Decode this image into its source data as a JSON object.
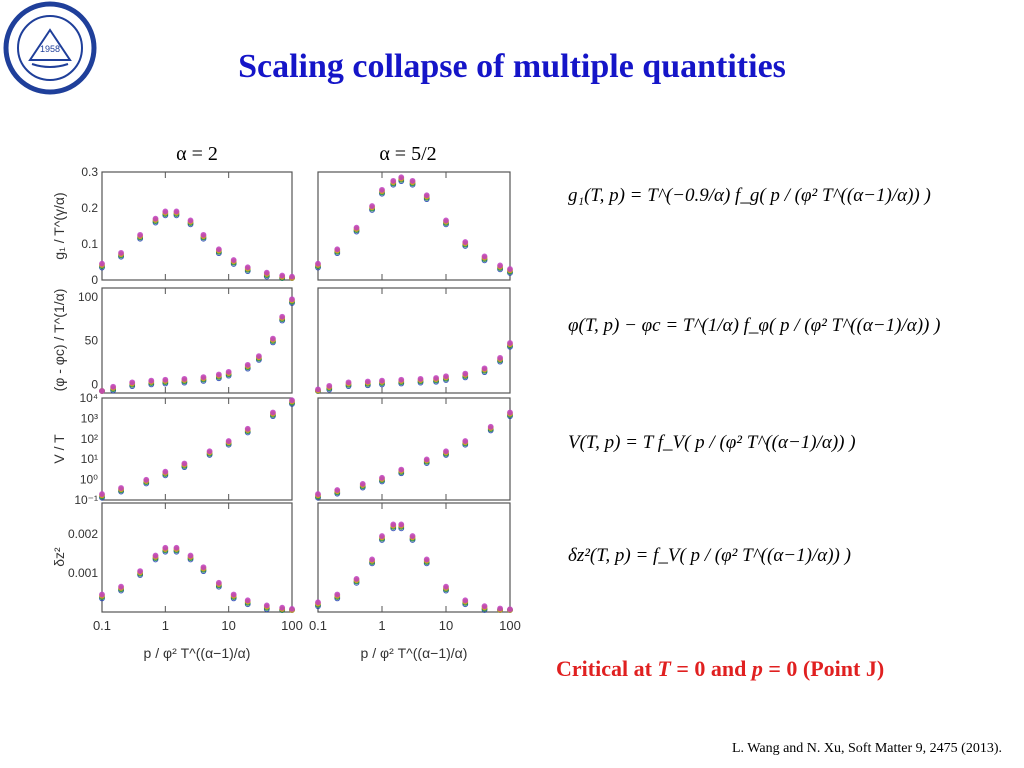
{
  "title": "Scaling collapse of multiple quantities",
  "panel_headers": [
    "α = 2",
    "α = 5/2"
  ],
  "y_labels": [
    "g₁ / T^(γ/α)",
    "(φ - φc) / T^(1/α)",
    "V / T",
    "δz²"
  ],
  "x_label": "p / φ² T^((α−1)/α)",
  "x_ticks": [
    "0.1",
    "1",
    "10",
    "100"
  ],
  "y_ticks": {
    "g1": [
      "0",
      "0.1",
      "0.2",
      "0.3"
    ],
    "phi": [
      "0",
      "50",
      "100"
    ],
    "V": [
      "10⁻¹",
      "10⁰",
      "10¹",
      "10²",
      "10³",
      "10⁴"
    ],
    "dz2": [
      "0.001",
      "0.002"
    ]
  },
  "equations": [
    "g₁(T, p) = T^(−0.9/α) f_g( p / (φ² T^((α−1)/α)) )",
    "φ(T, p) − φc = T^(1/α) f_φ( p / (φ² T^((α−1)/α)) )",
    "V(T, p) = T f_V( p / (φ² T^((α−1)/α)) )",
    "δz²(T, p) = f_V( p / (φ² T^((α−1)/α)) )"
  ],
  "critical": {
    "pre": "Critical at ",
    "T": "T",
    "mid1": " = 0 and ",
    "p": "p",
    "mid2": " = 0 (Point J)"
  },
  "citation": "L. Wang and N. Xu, Soft Matter 9, 2475 (2013).",
  "colors": {
    "title": "#1515c8",
    "critical": "#e02020",
    "series": [
      "#1f3fb0",
      "#1a8a3a",
      "#e8a020",
      "#c040c0"
    ]
  },
  "chart_data": [
    {
      "type": "scatter",
      "panel": "alpha2-g1",
      "xlim": [
        0.1,
        100
      ],
      "ylim": [
        0,
        0.3
      ],
      "xscale": "log",
      "x": [
        0.1,
        0.2,
        0.4,
        0.7,
        1,
        1.5,
        2.5,
        4,
        7,
        12,
        20,
        40,
        70,
        100
      ],
      "values": [
        0.04,
        0.07,
        0.12,
        0.165,
        0.185,
        0.185,
        0.16,
        0.12,
        0.08,
        0.05,
        0.03,
        0.015,
        0.007,
        0.004
      ]
    },
    {
      "type": "scatter",
      "panel": "alpha52-g1",
      "xlim": [
        0.1,
        100
      ],
      "ylim": [
        0,
        0.3
      ],
      "xscale": "log",
      "x": [
        0.1,
        0.2,
        0.4,
        0.7,
        1,
        1.5,
        2,
        3,
        5,
        10,
        20,
        40,
        70,
        100
      ],
      "values": [
        0.04,
        0.08,
        0.14,
        0.2,
        0.245,
        0.27,
        0.28,
        0.27,
        0.23,
        0.16,
        0.1,
        0.06,
        0.035,
        0.025
      ]
    },
    {
      "type": "scatter",
      "panel": "alpha2-phi",
      "xlim": [
        0.1,
        100
      ],
      "ylim": [
        -10,
        110
      ],
      "xscale": "log",
      "x": [
        0.1,
        0.15,
        0.3,
        0.6,
        1,
        2,
        4,
        7,
        10,
        20,
        30,
        50,
        70,
        100
      ],
      "values": [
        -10,
        -5,
        0,
        2,
        3,
        4,
        6,
        9,
        12,
        20,
        30,
        50,
        75,
        95
      ]
    },
    {
      "type": "scatter",
      "panel": "alpha52-phi",
      "xlim": [
        0.1,
        100
      ],
      "ylim": [
        -10,
        110
      ],
      "xscale": "log",
      "x": [
        0.1,
        0.15,
        0.3,
        0.6,
        1,
        2,
        4,
        7,
        10,
        20,
        40,
        70,
        100
      ],
      "values": [
        -8,
        -4,
        0,
        1,
        2,
        3,
        4,
        5,
        7,
        10,
        16,
        28,
        45
      ]
    },
    {
      "type": "scatter",
      "panel": "alpha2-V",
      "xlim": [
        0.1,
        100
      ],
      "ylim": [
        -1,
        4
      ],
      "yscale": "log",
      "xscale": "log",
      "x": [
        0.1,
        0.2,
        0.5,
        1,
        2,
        5,
        10,
        20,
        50,
        100
      ],
      "values": [
        -0.8,
        -0.5,
        -0.1,
        0.3,
        0.7,
        1.3,
        1.8,
        2.4,
        3.2,
        3.8
      ]
    },
    {
      "type": "scatter",
      "panel": "alpha52-V",
      "xlim": [
        0.1,
        100
      ],
      "ylim": [
        -1,
        4
      ],
      "yscale": "log",
      "xscale": "log",
      "x": [
        0.1,
        0.2,
        0.5,
        1,
        2,
        5,
        10,
        20,
        50,
        100
      ],
      "values": [
        -0.8,
        -0.6,
        -0.3,
        0,
        0.4,
        0.9,
        1.3,
        1.8,
        2.5,
        3.2
      ]
    },
    {
      "type": "scatter",
      "panel": "alpha2-dz2",
      "xlim": [
        0.1,
        100
      ],
      "ylim": [
        0,
        0.0028
      ],
      "xscale": "log",
      "x": [
        0.1,
        0.2,
        0.4,
        0.7,
        1,
        1.5,
        2.5,
        4,
        7,
        12,
        20,
        40,
        70,
        100
      ],
      "values": [
        0.0004,
        0.0006,
        0.001,
        0.0014,
        0.0016,
        0.0016,
        0.0014,
        0.0011,
        0.0007,
        0.0004,
        0.00025,
        0.00012,
        6e-05,
        3e-05
      ]
    },
    {
      "type": "scatter",
      "panel": "alpha52-dz2",
      "xlim": [
        0.1,
        100
      ],
      "ylim": [
        0,
        0.0028
      ],
      "xscale": "log",
      "x": [
        0.1,
        0.2,
        0.4,
        0.7,
        1,
        1.5,
        2,
        3,
        5,
        10,
        20,
        40,
        70,
        100
      ],
      "values": [
        0.0002,
        0.0004,
        0.0008,
        0.0013,
        0.0019,
        0.0022,
        0.0022,
        0.0019,
        0.0013,
        0.0006,
        0.00025,
        0.0001,
        4e-05,
        2e-05
      ]
    }
  ]
}
